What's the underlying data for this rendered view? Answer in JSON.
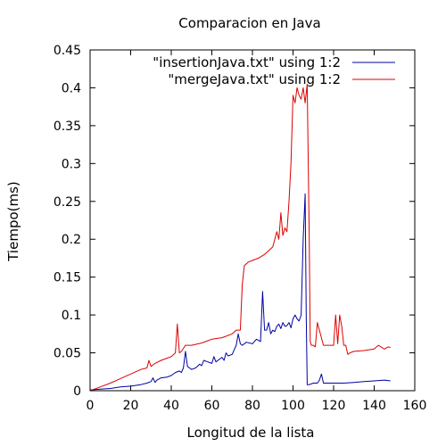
{
  "chart_data": {
    "type": "line",
    "title": "Comparacion en Java",
    "xlabel": "Longitud de la lista",
    "ylabel": "Tiempo(ms)",
    "xlim": [
      0,
      160
    ],
    "ylim": [
      0,
      0.45
    ],
    "x_ticks": [
      0,
      20,
      40,
      60,
      80,
      100,
      120,
      140,
      160
    ],
    "x_tick_labels": [
      "0",
      "20",
      "40",
      "60",
      "80",
      "100",
      "120",
      "140",
      "160"
    ],
    "y_ticks": [
      0,
      0.05,
      0.1,
      0.15,
      0.2,
      0.25,
      0.3,
      0.35,
      0.4,
      0.45
    ],
    "y_tick_labels": [
      "0",
      "0.05",
      "0.1",
      "0.15",
      "0.2",
      "0.25",
      "0.3",
      "0.35",
      "0.4",
      "0.45"
    ],
    "grid": false,
    "legend_position": "top-right",
    "series": [
      {
        "name": "\"insertionJava.txt\" using 1:2",
        "color": "#0000a0",
        "x": [
          0,
          5,
          10,
          15,
          20,
          25,
          28,
          30,
          31,
          32,
          33,
          35,
          38,
          40,
          42,
          44,
          45,
          46,
          47,
          48,
          49,
          50,
          52,
          54,
          55,
          56,
          58,
          60,
          61,
          62,
          63,
          65,
          66,
          67,
          68,
          70,
          72,
          73,
          74,
          75,
          77,
          80,
          82,
          84,
          85,
          86,
          87,
          88,
          89,
          90,
          91,
          92,
          93,
          94,
          95,
          96,
          97,
          98,
          99,
          100,
          101,
          102,
          103,
          104,
          105,
          106,
          106.5,
          107,
          108,
          110,
          112,
          113,
          114,
          115,
          117,
          120,
          125,
          130,
          135,
          140,
          145,
          148
        ],
        "y": [
          0.001,
          0.002,
          0.003,
          0.005,
          0.006,
          0.008,
          0.01,
          0.012,
          0.017,
          0.011,
          0.014,
          0.017,
          0.018,
          0.02,
          0.024,
          0.026,
          0.024,
          0.03,
          0.052,
          0.032,
          0.03,
          0.028,
          0.03,
          0.035,
          0.033,
          0.04,
          0.038,
          0.036,
          0.045,
          0.038,
          0.04,
          0.044,
          0.04,
          0.05,
          0.046,
          0.048,
          0.06,
          0.075,
          0.062,
          0.06,
          0.064,
          0.062,
          0.068,
          0.065,
          0.131,
          0.08,
          0.08,
          0.09,
          0.075,
          0.08,
          0.078,
          0.085,
          0.088,
          0.082,
          0.09,
          0.085,
          0.086,
          0.09,
          0.083,
          0.095,
          0.1,
          0.095,
          0.092,
          0.1,
          0.2,
          0.26,
          0.1,
          0.008,
          0.008,
          0.01,
          0.01,
          0.014,
          0.022,
          0.01,
          0.01,
          0.01,
          0.01,
          0.011,
          0.012,
          0.013,
          0.014,
          0.013
        ]
      },
      {
        "name": "\"mergeJava.txt\" using 1:2",
        "color": "#dd0000",
        "x": [
          0,
          5,
          10,
          15,
          20,
          25,
          28,
          29,
          30,
          32,
          35,
          38,
          40,
          42,
          43,
          44,
          45,
          47,
          50,
          55,
          60,
          65,
          70,
          72,
          74,
          75,
          76,
          78,
          80,
          83,
          86,
          88,
          90,
          92,
          93,
          94,
          95,
          96,
          97,
          98,
          99,
          100,
          101,
          102,
          103,
          104,
          105,
          106,
          107,
          108,
          108.5,
          109,
          110,
          111,
          112,
          115,
          118,
          120,
          121,
          122,
          123,
          124,
          125,
          126,
          127,
          128,
          130,
          135,
          140,
          142,
          145,
          147,
          148
        ],
        "y": [
          0.0,
          0.005,
          0.01,
          0.016,
          0.022,
          0.028,
          0.03,
          0.04,
          0.032,
          0.036,
          0.04,
          0.043,
          0.045,
          0.05,
          0.088,
          0.05,
          0.052,
          0.06,
          0.06,
          0.063,
          0.068,
          0.07,
          0.075,
          0.08,
          0.08,
          0.14,
          0.165,
          0.17,
          0.172,
          0.175,
          0.18,
          0.185,
          0.19,
          0.21,
          0.2,
          0.235,
          0.205,
          0.215,
          0.21,
          0.25,
          0.3,
          0.39,
          0.38,
          0.4,
          0.39,
          0.385,
          0.4,
          0.38,
          0.405,
          0.2,
          0.065,
          0.06,
          0.06,
          0.058,
          0.09,
          0.06,
          0.06,
          0.06,
          0.1,
          0.062,
          0.1,
          0.085,
          0.06,
          0.06,
          0.048,
          0.05,
          0.052,
          0.053,
          0.055,
          0.06,
          0.055,
          0.058,
          0.057
        ]
      }
    ]
  }
}
